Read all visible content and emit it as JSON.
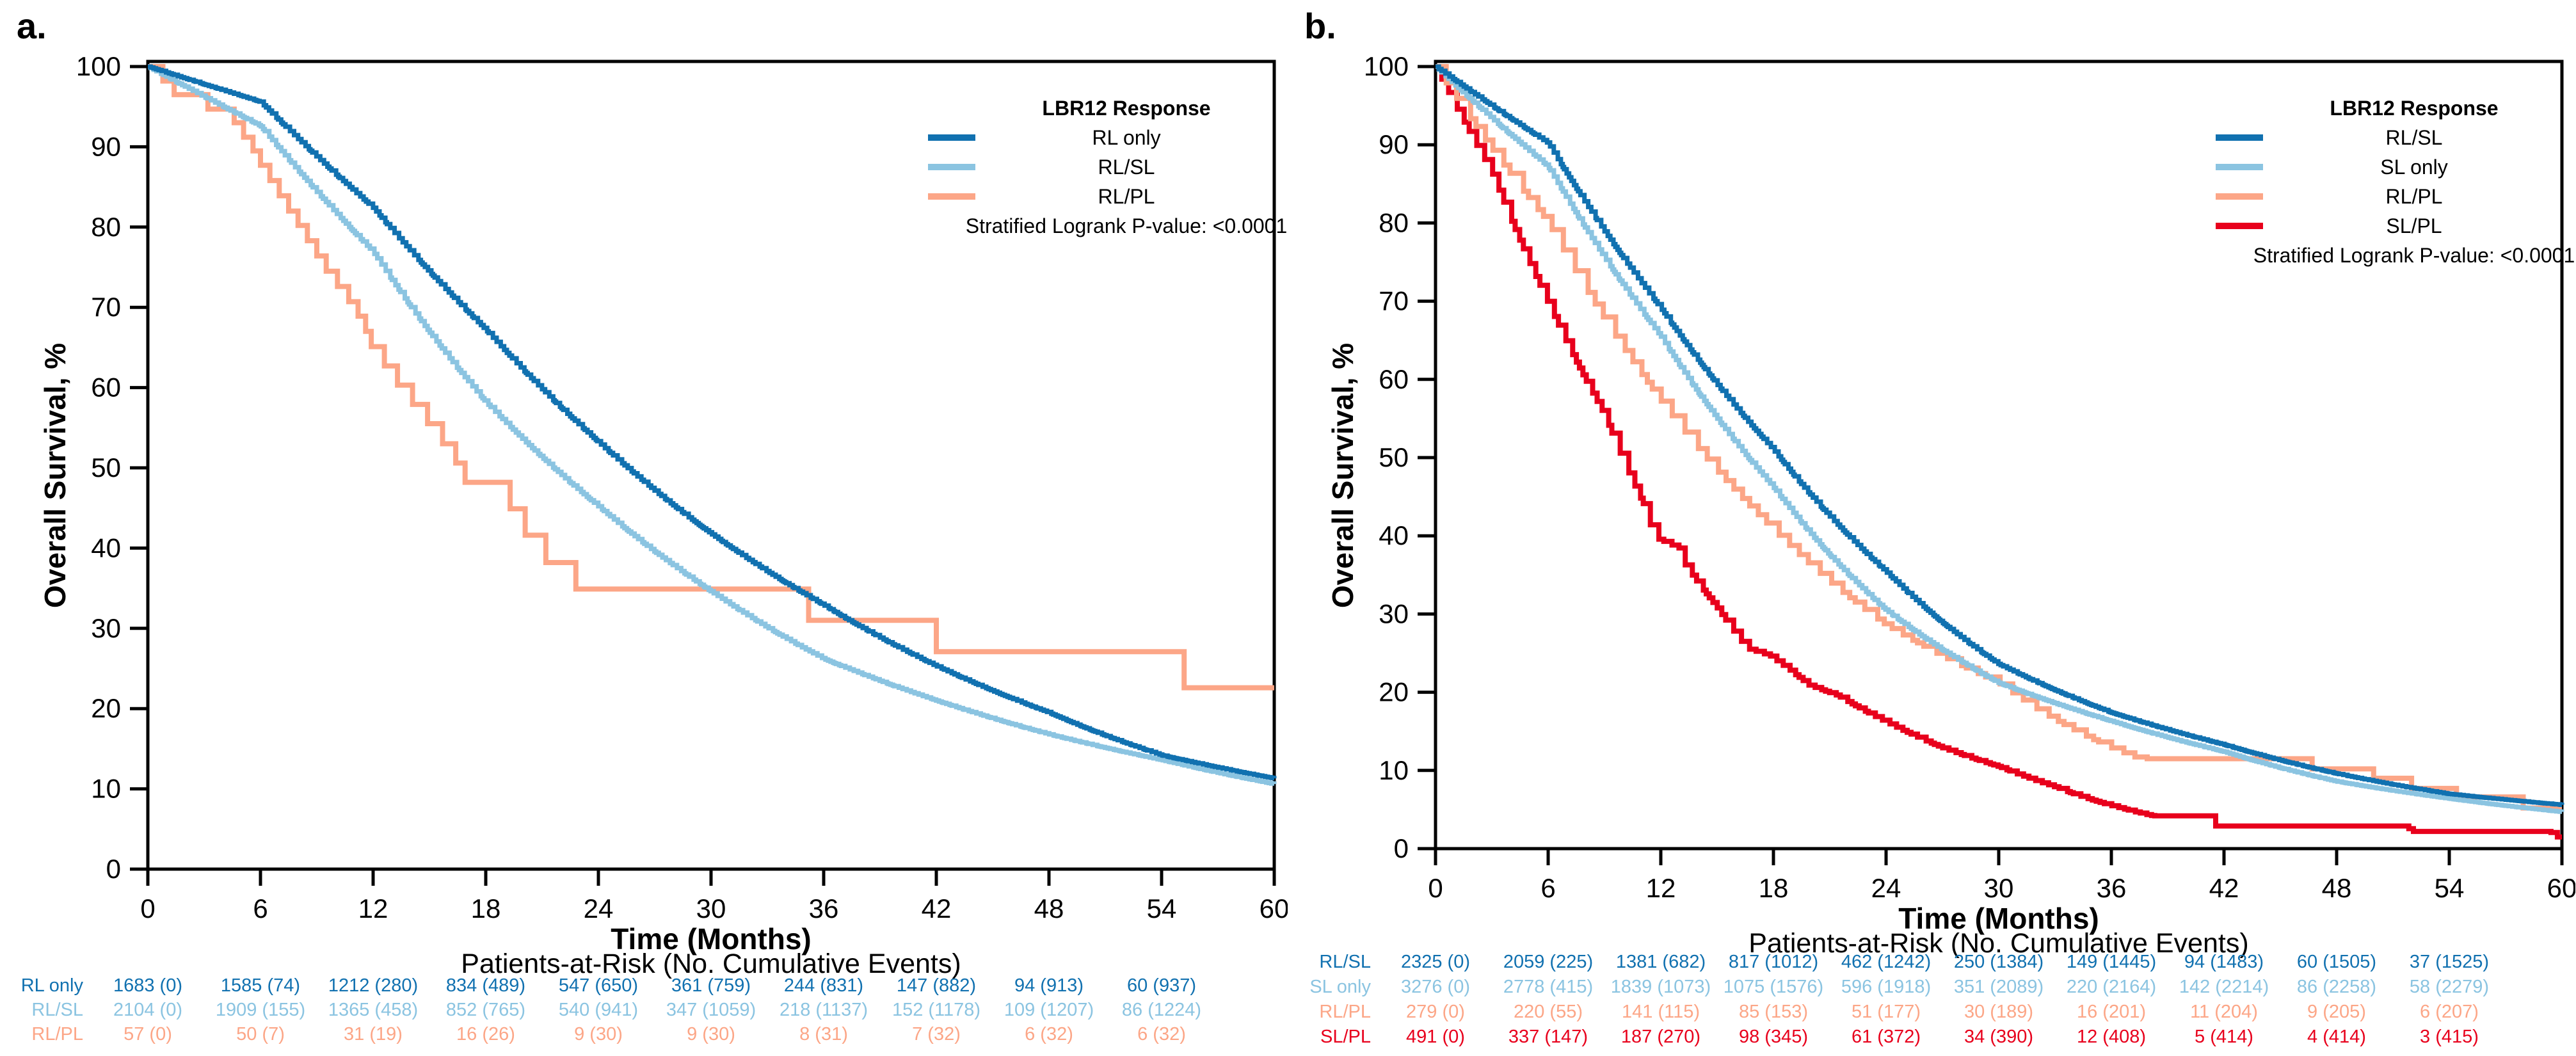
{
  "figure": {
    "panels": [
      {
        "label": "a.",
        "y_title": "Overall Survival, %",
        "x_title": "Time (Months)",
        "risk_header": "Patients-at-Risk (No. Cumulative Events)",
        "legend": {
          "title": "LBR12 Response",
          "items": [
            {
              "label": "RL only",
              "color": "#1171b0"
            },
            {
              "label": "RL/SL",
              "color": "#8bc4e1"
            },
            {
              "label": "RL/PL",
              "color": "#fca687"
            }
          ],
          "note": "Stratified Logrank P-value: <0.0001"
        },
        "risk_table": {
          "rows": [
            {
              "label": "RL only",
              "color": "#1171b0",
              "values": [
                "1683 (0)",
                "1585 (74)",
                "1212 (280)",
                "834 (489)",
                "547 (650)",
                "361 (759)",
                "244 (831)",
                "147 (882)",
                "94 (913)",
                "60 (937)"
              ]
            },
            {
              "label": "RL/SL",
              "color": "#8bc4e1",
              "values": [
                "2104 (0)",
                "1909 (155)",
                "1365 (458)",
                "852 (765)",
                "540 (941)",
                "347 (1059)",
                "218 (1137)",
                "152 (1178)",
                "109 (1207)",
                "86 (1224)"
              ]
            },
            {
              "label": "RL/PL",
              "color": "#fca687",
              "values": [
                "57 (0)",
                "50 (7)",
                "31 (19)",
                "16 (26)",
                "9 (30)",
                "9 (30)",
                "8 (31)",
                "7 (32)",
                "6 (32)",
                "6 (32)"
              ]
            }
          ]
        }
      },
      {
        "label": "b.",
        "y_title": "Overall Survival, %",
        "x_title": "Time (Months)",
        "risk_header": "Patients-at-Risk (No. Cumulative Events)",
        "legend": {
          "title": "LBR12 Response",
          "items": [
            {
              "label": "RL/SL",
              "color": "#1171b0"
            },
            {
              "label": "SL only",
              "color": "#8bc4e1"
            },
            {
              "label": "RL/PL",
              "color": "#fca687"
            },
            {
              "label": "SL/PL",
              "color": "#e8001c"
            }
          ],
          "note": "Stratified Logrank P-value: <0.0001"
        },
        "risk_table": {
          "rows": [
            {
              "label": "RL/SL",
              "color": "#1171b0",
              "values": [
                "2325 (0)",
                "2059 (225)",
                "1381 (682)",
                "817 (1012)",
                "462 (1242)",
                "250 (1384)",
                "149 (1445)",
                "94 (1483)",
                "60 (1505)",
                "37 (1525)"
              ]
            },
            {
              "label": "SL only",
              "color": "#8bc4e1",
              "values": [
                "3276 (0)",
                "2778 (415)",
                "1839 (1073)",
                "1075 (1576)",
                "596 (1918)",
                "351 (2089)",
                "220 (2164)",
                "142 (2214)",
                "86 (2258)",
                "58 (2279)"
              ]
            },
            {
              "label": "RL/PL",
              "color": "#fca687",
              "values": [
                "279 (0)",
                "220 (55)",
                "141 (115)",
                "85 (153)",
                "51 (177)",
                "30 (189)",
                "16 (201)",
                "11 (204)",
                "9 (205)",
                "6 (207)"
              ]
            },
            {
              "label": "SL/PL",
              "color": "#e8001c",
              "values": [
                "491 (0)",
                "337 (147)",
                "187 (270)",
                "98 (345)",
                "61 (372)",
                "34 (390)",
                "12 (408)",
                "5 (414)",
                "4 (414)",
                "3 (415)"
              ]
            }
          ]
        }
      }
    ]
  },
  "chart_data": [
    {
      "type": "line",
      "subtype": "kaplan-meier-step",
      "title": "",
      "xlabel": "Time (Months)",
      "ylabel": "Overall Survival, %",
      "xlim": [
        0,
        60
      ],
      "ylim": [
        0,
        100
      ],
      "x_ticks": [
        0,
        6,
        12,
        18,
        24,
        30,
        36,
        42,
        48,
        54,
        60
      ],
      "y_ticks": [
        0,
        10,
        20,
        30,
        40,
        50,
        60,
        70,
        80,
        90,
        100
      ],
      "grid": false,
      "legend_position": "upper-right",
      "series": [
        {
          "name": "RL/PL",
          "color": "#fca687",
          "mode": "steps",
          "width": 8,
          "anchors": [
            [
              0,
              100
            ],
            [
              0.8,
              98.2
            ],
            [
              1.4,
              96.5
            ],
            [
              3.2,
              94.7
            ],
            [
              4.6,
              93.0
            ],
            [
              5.1,
              91.2
            ],
            [
              5.6,
              89.5
            ],
            [
              6.0,
              87.7
            ],
            [
              6.5,
              85.8
            ],
            [
              7.0,
              83.9
            ],
            [
              7.5,
              82.0
            ],
            [
              8.0,
              80.2
            ],
            [
              8.5,
              78.3
            ],
            [
              9.0,
              76.4
            ],
            [
              9.5,
              74.5
            ],
            [
              10.1,
              72.6
            ],
            [
              10.7,
              70.7
            ],
            [
              11.2,
              68.9
            ],
            [
              11.6,
              67.0
            ],
            [
              11.9,
              65.1
            ],
            [
              12.6,
              62.7
            ],
            [
              13.3,
              60.3
            ],
            [
              14.1,
              57.9
            ],
            [
              14.9,
              55.5
            ],
            [
              15.7,
              53.0
            ],
            [
              16.4,
              50.6
            ],
            [
              16.9,
              48.2
            ],
            [
              19.3,
              44.9
            ],
            [
              20.1,
              41.6
            ],
            [
              21.2,
              38.2
            ],
            [
              22.8,
              34.9
            ],
            [
              35.2,
              31.0
            ],
            [
              42.0,
              27.1
            ],
            [
              55.2,
              22.6
            ]
          ]
        },
        {
          "name": "RL/SL",
          "color": "#8bc4e1",
          "mode": "smooth",
          "granularity": 0.16,
          "width": 7,
          "anchors": [
            [
              0,
              100
            ],
            [
              6,
              92.6
            ],
            [
              12,
              76.9
            ],
            [
              18,
              58.2
            ],
            [
              24,
              45.2
            ],
            [
              30,
              34.6
            ],
            [
              36,
              26.2
            ],
            [
              42,
              21.0
            ],
            [
              48,
              16.8
            ],
            [
              54,
              13.6
            ],
            [
              60,
              10.6
            ]
          ]
        },
        {
          "name": "RL only",
          "color": "#1171b0",
          "mode": "smooth",
          "granularity": 0.16,
          "width": 7,
          "anchors": [
            [
              0,
              100
            ],
            [
              6,
              95.6
            ],
            [
              12,
              82.4
            ],
            [
              18,
              67.2
            ],
            [
              24,
              53.2
            ],
            [
              30,
              41.8
            ],
            [
              36,
              32.9
            ],
            [
              42,
              25.3
            ],
            [
              48,
              19.5
            ],
            [
              54,
              14.2
            ],
            [
              60,
              11.3
            ]
          ]
        }
      ]
    },
    {
      "type": "line",
      "subtype": "kaplan-meier-step",
      "title": "",
      "xlabel": "Time (Months)",
      "ylabel": "Overall Survival, %",
      "xlim": [
        0,
        60
      ],
      "ylim": [
        0,
        100
      ],
      "x_ticks": [
        0,
        6,
        12,
        18,
        24,
        30,
        36,
        42,
        48,
        54,
        60
      ],
      "y_ticks": [
        0,
        10,
        20,
        30,
        40,
        50,
        60,
        70,
        80,
        90,
        100
      ],
      "grid": false,
      "legend_position": "upper-right",
      "series": [
        {
          "name": "SL/PL",
          "color": "#e8001c",
          "mode": "smooth",
          "granularity": 0.3,
          "width": 8,
          "anchors": [
            [
              0,
              100
            ],
            [
              3,
              86.5
            ],
            [
              6,
              69.8
            ],
            [
              9,
              55.5
            ],
            [
              11.4,
              42.5
            ],
            [
              11.5,
              40.0
            ],
            [
              13.0,
              38.4
            ],
            [
              13.1,
              37.0
            ],
            [
              15,
              30.8
            ],
            [
              16.6,
              25.6
            ],
            [
              17.8,
              24.7
            ],
            [
              18.9,
              22.8
            ],
            [
              19.9,
              20.9
            ],
            [
              21.4,
              19.6
            ],
            [
              24,
              16.2
            ],
            [
              27,
              12.9
            ],
            [
              30,
              10.5
            ],
            [
              33,
              7.9
            ],
            [
              36,
              5.5
            ],
            [
              38.2,
              4.2
            ],
            [
              41.3,
              4.2
            ],
            [
              41.4,
              2.9
            ],
            [
              51.8,
              2.9
            ],
            [
              51.9,
              2.2
            ],
            [
              59.4,
              2.2
            ],
            [
              59.5,
              1.5
            ],
            [
              60,
              1.5
            ]
          ]
        },
        {
          "name": "RL/PL",
          "color": "#fca687",
          "mode": "smooth",
          "granularity": 0.5,
          "width": 8,
          "anchors": [
            [
              0,
              100
            ],
            [
              6,
              80.1
            ],
            [
              12,
              57.3
            ],
            [
              18,
              40.8
            ],
            [
              24,
              28.6
            ],
            [
              30,
              21.2
            ],
            [
              33,
              16.5
            ],
            [
              36,
              12.9
            ],
            [
              37.5,
              11.5
            ],
            [
              46.5,
              11.5
            ],
            [
              46.6,
              10.2
            ],
            [
              49.6,
              10.2
            ],
            [
              49.7,
              9.0
            ],
            [
              51.8,
              9.0
            ],
            [
              51.9,
              7.7
            ],
            [
              54.1,
              7.7
            ],
            [
              54.2,
              6.6
            ],
            [
              57.8,
              6.6
            ],
            [
              57.9,
              5.2
            ],
            [
              60,
              5.2
            ]
          ]
        },
        {
          "name": "SL only",
          "color": "#8bc4e1",
          "mode": "smooth",
          "granularity": 0.15,
          "width": 7,
          "anchors": [
            [
              0,
              100
            ],
            [
              6,
              87.2
            ],
            [
              12,
              65.5
            ],
            [
              18,
              46.2
            ],
            [
              24,
              30.5
            ],
            [
              30,
              21.2
            ],
            [
              36,
              16.3
            ],
            [
              42,
              12.4
            ],
            [
              48,
              8.6
            ],
            [
              54,
              6.4
            ],
            [
              60,
              4.7
            ]
          ]
        },
        {
          "name": "RL/SL",
          "color": "#1171b0",
          "mode": "smooth",
          "granularity": 0.15,
          "width": 7,
          "anchors": [
            [
              0,
              100
            ],
            [
              6,
              90.2
            ],
            [
              12,
              69.1
            ],
            [
              18,
              51.0
            ],
            [
              24,
              35.4
            ],
            [
              30,
              23.6
            ],
            [
              36,
              17.4
            ],
            [
              42,
              13.3
            ],
            [
              48,
              9.6
            ],
            [
              54,
              7.0
            ],
            [
              60,
              5.6
            ]
          ]
        }
      ]
    }
  ]
}
